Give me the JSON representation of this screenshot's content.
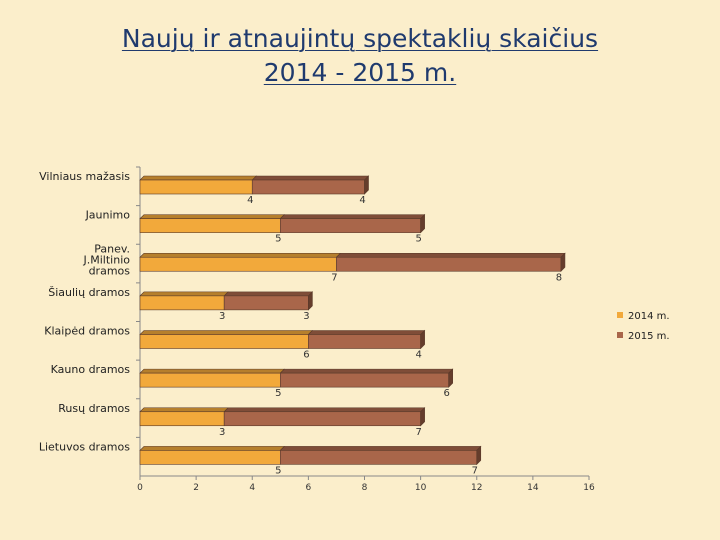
{
  "chart_data": {
    "type": "bar",
    "orientation": "horizontal",
    "title": [
      "Naujų ir atnaujintų spektaklių skaičius",
      "2014 - 2015 m."
    ],
    "categories": [
      [
        "Vilniaus mažasis"
      ],
      [
        "Jaunimo"
      ],
      [
        "Panev.",
        "J.Miltinio",
        "dramos"
      ],
      [
        "Šiaulių dramos"
      ],
      [
        "Klaipėd dramos"
      ],
      [
        "Kauno dramos"
      ],
      [
        "Rusų dramos"
      ],
      [
        "Lietuvos dramos"
      ]
    ],
    "series": [
      {
        "name": "2014 m.",
        "values": [
          4,
          5,
          7,
          3,
          6,
          5,
          3,
          5
        ],
        "color": "#f2a93b"
      },
      {
        "name": "2015 m.",
        "values": [
          4,
          5,
          8,
          3,
          4,
          6,
          7,
          7
        ],
        "color": "#a9664a"
      }
    ],
    "xlim": [
      0,
      16
    ],
    "xticks": [
      0,
      2,
      4,
      6,
      8,
      10,
      12,
      14,
      16
    ],
    "xlabel": "",
    "ylabel": "",
    "legend": "right"
  }
}
